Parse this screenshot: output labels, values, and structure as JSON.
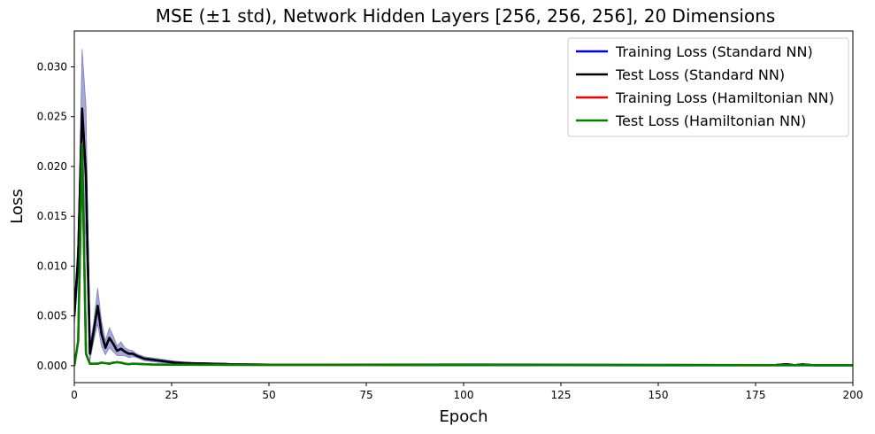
{
  "chart_data": {
    "type": "line",
    "title": "MSE (±1 std), Network Hidden Layers [256, 256, 256], 20 Dimensions",
    "xlabel": "Epoch",
    "ylabel": "Loss",
    "xlim": [
      0,
      200
    ],
    "ylim": [
      -0.0017,
      0.0336
    ],
    "xticks": [
      0,
      25,
      50,
      75,
      100,
      125,
      150,
      175,
      200
    ],
    "xtick_labels": [
      "0",
      "25",
      "50",
      "75",
      "100",
      "125",
      "150",
      "175",
      "200"
    ],
    "yticks": [
      0.0,
      0.005,
      0.01,
      0.015,
      0.02,
      0.025,
      0.03
    ],
    "ytick_labels": [
      "0.000",
      "0.005",
      "0.010",
      "0.015",
      "0.020",
      "0.025",
      "0.030"
    ],
    "grid": false,
    "legend_position": "top-right",
    "series": [
      {
        "name": "Training Loss (Standard NN)",
        "color": "#0000dd",
        "x": [
          0,
          1,
          2,
          3,
          4,
          5,
          6,
          7,
          8,
          9,
          10,
          11,
          12,
          13,
          14,
          15,
          16,
          18,
          20,
          22,
          24,
          26,
          30,
          35,
          40,
          50,
          75,
          100,
          125,
          150,
          175,
          180,
          183,
          185,
          187,
          190,
          195,
          200
        ],
        "y": [
          0.005,
          0.011,
          0.0258,
          0.019,
          0.0012,
          0.0035,
          0.006,
          0.0032,
          0.0018,
          0.0028,
          0.0022,
          0.0015,
          0.0017,
          0.0014,
          0.0012,
          0.0012,
          0.001,
          0.0007,
          0.0006,
          0.0005,
          0.0004,
          0.0003,
          0.00025,
          0.0002,
          0.00015,
          0.0001,
          0.0001,
          0.0001,
          8e-05,
          7e-05,
          6e-05,
          6e-05,
          0.00015,
          5e-05,
          0.00012,
          5e-05,
          4e-05,
          4e-05
        ]
      },
      {
        "name": "Test Loss (Standard NN)",
        "color": "#000000",
        "x": [
          0,
          1,
          2,
          3,
          4,
          5,
          6,
          7,
          8,
          9,
          10,
          11,
          12,
          13,
          14,
          15,
          16,
          18,
          20,
          22,
          24,
          26,
          30,
          35,
          40,
          50,
          75,
          100,
          125,
          150,
          175,
          180,
          183,
          185,
          187,
          190,
          195,
          200
        ],
        "y": [
          0.005,
          0.011,
          0.0258,
          0.019,
          0.0012,
          0.0035,
          0.006,
          0.0032,
          0.0018,
          0.0028,
          0.0022,
          0.0015,
          0.0017,
          0.0014,
          0.0012,
          0.0012,
          0.001,
          0.0007,
          0.0006,
          0.0005,
          0.0004,
          0.0003,
          0.00025,
          0.0002,
          0.00015,
          0.0001,
          0.0001,
          0.0001,
          8e-05,
          7e-05,
          6e-05,
          6e-05,
          0.00015,
          5e-05,
          0.00012,
          5e-05,
          4e-05,
          4e-05
        ]
      },
      {
        "name": "Training Loss (Hamiltonian NN)",
        "color": "#ee0000",
        "x": [
          0,
          1,
          2,
          3,
          4,
          5,
          6,
          7,
          8,
          9,
          10,
          11,
          12,
          13,
          14,
          15,
          20,
          25,
          50,
          100,
          150,
          200
        ],
        "y": [
          0.0,
          0.0025,
          0.0222,
          0.0012,
          0.0002,
          0.0002,
          0.0002,
          0.0003,
          0.00025,
          0.0002,
          0.0003,
          0.00035,
          0.0003,
          0.0002,
          0.00015,
          0.0002,
          0.00012,
          0.0001,
          8e-05,
          6e-05,
          5e-05,
          4e-05
        ]
      },
      {
        "name": "Test Loss (Hamiltonian NN)",
        "color": "#008000",
        "x": [
          0,
          1,
          2,
          3,
          4,
          5,
          6,
          7,
          8,
          9,
          10,
          11,
          12,
          13,
          14,
          15,
          20,
          25,
          50,
          100,
          150,
          200
        ],
        "y": [
          0.0,
          0.0025,
          0.0222,
          0.0012,
          0.0002,
          0.0002,
          0.0002,
          0.0003,
          0.00025,
          0.0002,
          0.0003,
          0.00035,
          0.0003,
          0.0002,
          0.00015,
          0.0002,
          0.00012,
          0.0001,
          8e-05,
          6e-05,
          5e-05,
          4e-05
        ]
      }
    ],
    "band": {
      "series": "Training Loss (Standard NN)",
      "color": "#6060b0",
      "x": [
        0,
        1,
        2,
        3,
        4,
        5,
        6,
        7,
        8,
        9,
        10,
        11,
        12,
        13,
        14,
        15,
        16,
        18,
        20,
        25,
        30,
        40,
        50,
        100,
        150,
        180,
        183,
        185,
        187,
        190,
        200
      ],
      "upper": [
        0.006,
        0.013,
        0.0318,
        0.026,
        0.002,
        0.0045,
        0.0078,
        0.0045,
        0.0025,
        0.0038,
        0.003,
        0.002,
        0.0024,
        0.0018,
        0.0016,
        0.0015,
        0.0012,
        0.0009,
        0.0008,
        0.0005,
        0.0003,
        0.0002,
        0.00015,
        0.00012,
        0.0001,
        0.0001,
        0.0002,
        0.0001,
        0.00017,
        8e-05,
        6e-05
      ],
      "lower": [
        0.004,
        0.009,
        0.0198,
        0.012,
        0.0005,
        0.0025,
        0.0042,
        0.0019,
        0.0011,
        0.0018,
        0.0014,
        0.001,
        0.001,
        0.001,
        0.0008,
        0.0009,
        0.0008,
        0.0005,
        0.0004,
        0.0002,
        0.00015,
        0.0001,
        7e-05,
        6e-05,
        4e-05,
        3e-05,
        0.0001,
        2e-05,
        7e-05,
        2e-05,
        2e-05
      ]
    }
  }
}
